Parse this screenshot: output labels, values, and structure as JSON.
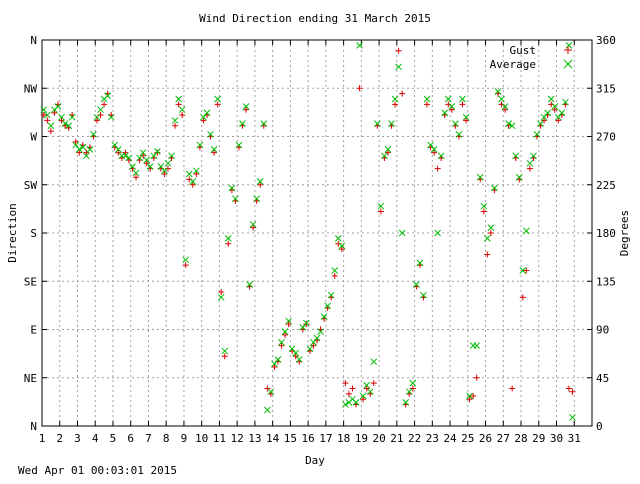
{
  "chart_data": {
    "type": "scatter",
    "title": "Wind Direction ending 31 March 2015",
    "xlabel": "Day",
    "ylabel_left": "Direction",
    "ylabel_right": "Degrees",
    "xlim": [
      1,
      32
    ],
    "ylim": [
      0,
      360
    ],
    "grid": true,
    "legend_position": "top-right",
    "x_ticks": [
      1,
      2,
      3,
      4,
      5,
      6,
      7,
      8,
      9,
      10,
      11,
      12,
      13,
      14,
      15,
      16,
      17,
      18,
      19,
      20,
      21,
      22,
      23,
      24,
      25,
      26,
      27,
      28,
      29,
      30,
      31
    ],
    "y_ticks_left": [
      {
        "v": 0,
        "label": "N"
      },
      {
        "v": 45,
        "label": "NE"
      },
      {
        "v": 90,
        "label": "E"
      },
      {
        "v": 135,
        "label": "SE"
      },
      {
        "v": 180,
        "label": "S"
      },
      {
        "v": 225,
        "label": "SW"
      },
      {
        "v": 270,
        "label": "W"
      },
      {
        "v": 315,
        "label": "NW"
      },
      {
        "v": 360,
        "label": "N"
      }
    ],
    "y_ticks_right": [
      0,
      45,
      90,
      135,
      180,
      225,
      270,
      315,
      360
    ],
    "series": [
      {
        "name": "Gust",
        "marker": "plus",
        "color": "#dd0000",
        "points": [
          [
            1.1,
            290
          ],
          [
            1.3,
            285
          ],
          [
            1.5,
            275
          ],
          [
            1.7,
            292
          ],
          [
            1.9,
            300
          ],
          [
            2.1,
            285
          ],
          [
            2.3,
            280
          ],
          [
            2.5,
            278
          ],
          [
            2.7,
            290
          ],
          [
            2.9,
            265
          ],
          [
            3.1,
            255
          ],
          [
            3.3,
            262
          ],
          [
            3.5,
            255
          ],
          [
            3.7,
            260
          ],
          [
            3.9,
            270
          ],
          [
            4.1,
            285
          ],
          [
            4.3,
            290
          ],
          [
            4.5,
            300
          ],
          [
            4.7,
            310
          ],
          [
            4.9,
            290
          ],
          [
            5.1,
            260
          ],
          [
            5.3,
            255
          ],
          [
            5.5,
            250
          ],
          [
            5.7,
            255
          ],
          [
            5.9,
            248
          ],
          [
            6.1,
            240
          ],
          [
            6.3,
            232
          ],
          [
            6.5,
            248
          ],
          [
            6.7,
            252
          ],
          [
            6.9,
            245
          ],
          [
            7.1,
            240
          ],
          [
            7.3,
            250
          ],
          [
            7.5,
            255
          ],
          [
            7.7,
            240
          ],
          [
            7.9,
            235
          ],
          [
            8.1,
            240
          ],
          [
            8.3,
            250
          ],
          [
            8.5,
            280
          ],
          [
            8.7,
            300
          ],
          [
            8.9,
            290
          ],
          [
            9.1,
            150
          ],
          [
            9.3,
            230
          ],
          [
            9.5,
            225
          ],
          [
            9.7,
            235
          ],
          [
            9.9,
            260
          ],
          [
            10.1,
            285
          ],
          [
            10.3,
            290
          ],
          [
            10.5,
            270
          ],
          [
            10.7,
            255
          ],
          [
            10.9,
            300
          ],
          [
            11.1,
            125
          ],
          [
            11.3,
            65
          ],
          [
            11.5,
            170
          ],
          [
            11.7,
            220
          ],
          [
            11.9,
            210
          ],
          [
            12.1,
            260
          ],
          [
            12.3,
            280
          ],
          [
            12.5,
            295
          ],
          [
            12.7,
            130
          ],
          [
            12.9,
            185
          ],
          [
            13.1,
            210
          ],
          [
            13.3,
            225
          ],
          [
            13.5,
            280
          ],
          [
            13.7,
            35
          ],
          [
            13.9,
            30
          ],
          [
            14.1,
            55
          ],
          [
            14.3,
            60
          ],
          [
            14.5,
            75
          ],
          [
            14.7,
            85
          ],
          [
            14.9,
            95
          ],
          [
            15.1,
            70
          ],
          [
            15.3,
            65
          ],
          [
            15.5,
            60
          ],
          [
            15.7,
            90
          ],
          [
            15.9,
            95
          ],
          [
            16.1,
            70
          ],
          [
            16.3,
            75
          ],
          [
            16.5,
            80
          ],
          [
            16.7,
            90
          ],
          [
            16.9,
            100
          ],
          [
            17.1,
            110
          ],
          [
            17.3,
            120
          ],
          [
            17.5,
            140
          ],
          [
            17.7,
            170
          ],
          [
            17.9,
            165
          ],
          [
            18.1,
            40
          ],
          [
            18.3,
            30
          ],
          [
            18.5,
            35
          ],
          [
            18.7,
            20
          ],
          [
            18.9,
            315
          ],
          [
            19.1,
            25
          ],
          [
            19.3,
            35
          ],
          [
            19.5,
            30
          ],
          [
            19.7,
            40
          ],
          [
            19.9,
            280
          ],
          [
            20.1,
            200
          ],
          [
            20.3,
            250
          ],
          [
            20.5,
            255
          ],
          [
            20.7,
            280
          ],
          [
            20.9,
            300
          ],
          [
            21.1,
            350
          ],
          [
            21.3,
            310
          ],
          [
            21.5,
            20
          ],
          [
            21.7,
            30
          ],
          [
            21.9,
            35
          ],
          [
            22.1,
            130
          ],
          [
            22.3,
            150
          ],
          [
            22.5,
            120
          ],
          [
            22.7,
            300
          ],
          [
            22.9,
            260
          ],
          [
            23.1,
            255
          ],
          [
            23.3,
            240
          ],
          [
            23.5,
            250
          ],
          [
            23.7,
            290
          ],
          [
            23.9,
            300
          ],
          [
            24.1,
            295
          ],
          [
            24.3,
            280
          ],
          [
            24.5,
            270
          ],
          [
            24.7,
            300
          ],
          [
            24.9,
            285
          ],
          [
            25.1,
            25
          ],
          [
            25.3,
            28
          ],
          [
            25.5,
            45
          ],
          [
            25.7,
            230
          ],
          [
            25.9,
            200
          ],
          [
            26.1,
            160
          ],
          [
            26.3,
            180
          ],
          [
            26.5,
            220
          ],
          [
            26.7,
            310
          ],
          [
            26.9,
            300
          ],
          [
            27.1,
            295
          ],
          [
            27.3,
            280
          ],
          [
            27.5,
            35
          ],
          [
            27.7,
            250
          ],
          [
            27.9,
            230
          ],
          [
            28.1,
            120
          ],
          [
            28.3,
            145
          ],
          [
            28.5,
            240
          ],
          [
            28.7,
            250
          ],
          [
            28.9,
            270
          ],
          [
            29.1,
            280
          ],
          [
            29.3,
            285
          ],
          [
            29.5,
            290
          ],
          [
            29.7,
            300
          ],
          [
            29.9,
            295
          ],
          [
            30.1,
            285
          ],
          [
            30.3,
            290
          ],
          [
            30.5,
            300
          ],
          [
            30.7,
            35
          ],
          [
            30.9,
            32
          ]
        ]
      },
      {
        "name": "Average",
        "marker": "cross",
        "color": "#00bb00",
        "points": [
          [
            1.1,
            295
          ],
          [
            1.3,
            290
          ],
          [
            1.5,
            280
          ],
          [
            1.7,
            295
          ],
          [
            1.9,
            298
          ],
          [
            2.1,
            288
          ],
          [
            2.3,
            282
          ],
          [
            2.5,
            280
          ],
          [
            2.7,
            288
          ],
          [
            2.9,
            262
          ],
          [
            3.1,
            258
          ],
          [
            3.3,
            260
          ],
          [
            3.5,
            252
          ],
          [
            3.7,
            258
          ],
          [
            3.9,
            272
          ],
          [
            4.1,
            288
          ],
          [
            4.3,
            295
          ],
          [
            4.5,
            305
          ],
          [
            4.7,
            308
          ],
          [
            4.9,
            288
          ],
          [
            5.1,
            262
          ],
          [
            5.3,
            258
          ],
          [
            5.5,
            252
          ],
          [
            5.7,
            252
          ],
          [
            5.9,
            250
          ],
          [
            6.1,
            242
          ],
          [
            6.3,
            236
          ],
          [
            6.5,
            250
          ],
          [
            6.7,
            255
          ],
          [
            6.9,
            248
          ],
          [
            7.1,
            242
          ],
          [
            7.3,
            252
          ],
          [
            7.5,
            256
          ],
          [
            7.7,
            242
          ],
          [
            7.9,
            238
          ],
          [
            8.1,
            245
          ],
          [
            8.3,
            252
          ],
          [
            8.5,
            285
          ],
          [
            8.7,
            305
          ],
          [
            8.9,
            295
          ],
          [
            9.1,
            155
          ],
          [
            9.3,
            235
          ],
          [
            9.5,
            228
          ],
          [
            9.7,
            238
          ],
          [
            9.9,
            262
          ],
          [
            10.1,
            288
          ],
          [
            10.3,
            292
          ],
          [
            10.5,
            272
          ],
          [
            10.7,
            258
          ],
          [
            10.9,
            305
          ],
          [
            11.1,
            120
          ],
          [
            11.3,
            70
          ],
          [
            11.5,
            175
          ],
          [
            11.7,
            222
          ],
          [
            11.9,
            212
          ],
          [
            12.1,
            262
          ],
          [
            12.3,
            282
          ],
          [
            12.5,
            298
          ],
          [
            12.7,
            132
          ],
          [
            12.9,
            188
          ],
          [
            13.1,
            212
          ],
          [
            13.3,
            228
          ],
          [
            13.5,
            282
          ],
          [
            13.7,
            15
          ],
          [
            13.9,
            32
          ],
          [
            14.1,
            58
          ],
          [
            14.3,
            62
          ],
          [
            14.5,
            78
          ],
          [
            14.7,
            88
          ],
          [
            14.9,
            98
          ],
          [
            15.1,
            72
          ],
          [
            15.3,
            68
          ],
          [
            15.5,
            62
          ],
          [
            15.7,
            92
          ],
          [
            15.9,
            96
          ],
          [
            16.1,
            72
          ],
          [
            16.3,
            78
          ],
          [
            16.5,
            82
          ],
          [
            16.7,
            88
          ],
          [
            16.9,
            102
          ],
          [
            17.1,
            112
          ],
          [
            17.3,
            122
          ],
          [
            17.5,
            145
          ],
          [
            17.7,
            175
          ],
          [
            17.9,
            168
          ],
          [
            18.1,
            20
          ],
          [
            18.3,
            22
          ],
          [
            18.5,
            25
          ],
          [
            18.7,
            22
          ],
          [
            18.9,
            355
          ],
          [
            19.1,
            28
          ],
          [
            19.3,
            38
          ],
          [
            19.5,
            32
          ],
          [
            19.7,
            60
          ],
          [
            19.9,
            282
          ],
          [
            20.1,
            205
          ],
          [
            20.3,
            252
          ],
          [
            20.5,
            258
          ],
          [
            20.7,
            282
          ],
          [
            20.9,
            305
          ],
          [
            21.1,
            335
          ],
          [
            21.3,
            180
          ],
          [
            21.5,
            22
          ],
          [
            21.7,
            32
          ],
          [
            21.9,
            40
          ],
          [
            22.1,
            132
          ],
          [
            22.3,
            152
          ],
          [
            22.5,
            122
          ],
          [
            22.7,
            305
          ],
          [
            22.9,
            262
          ],
          [
            23.1,
            258
          ],
          [
            23.3,
            180
          ],
          [
            23.5,
            252
          ],
          [
            23.7,
            292
          ],
          [
            23.9,
            305
          ],
          [
            24.1,
            298
          ],
          [
            24.3,
            282
          ],
          [
            24.5,
            272
          ],
          [
            24.7,
            305
          ],
          [
            24.9,
            288
          ],
          [
            25.1,
            28
          ],
          [
            25.3,
            75
          ],
          [
            25.5,
            75
          ],
          [
            25.7,
            232
          ],
          [
            25.9,
            205
          ],
          [
            26.1,
            175
          ],
          [
            26.3,
            185
          ],
          [
            26.5,
            222
          ],
          [
            26.7,
            312
          ],
          [
            26.9,
            305
          ],
          [
            27.1,
            298
          ],
          [
            27.3,
            282
          ],
          [
            27.5,
            280
          ],
          [
            27.7,
            252
          ],
          [
            27.9,
            232
          ],
          [
            28.1,
            145
          ],
          [
            28.3,
            182
          ],
          [
            28.5,
            245
          ],
          [
            28.7,
            252
          ],
          [
            28.9,
            272
          ],
          [
            29.1,
            282
          ],
          [
            29.3,
            288
          ],
          [
            29.5,
            292
          ],
          [
            29.7,
            305
          ],
          [
            29.9,
            298
          ],
          [
            30.1,
            288
          ],
          [
            30.3,
            292
          ],
          [
            30.5,
            302
          ],
          [
            30.7,
            355
          ],
          [
            30.9,
            8
          ]
        ]
      }
    ]
  },
  "footer": {
    "timestamp": "Wed Apr 01 00:03:01 2015"
  }
}
